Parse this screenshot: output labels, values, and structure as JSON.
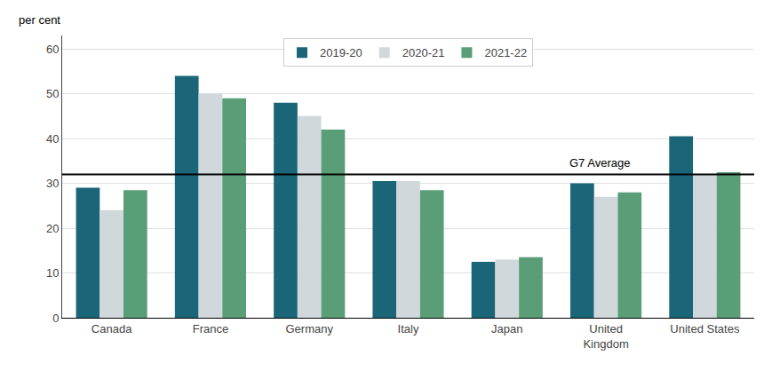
{
  "chart_data": {
    "type": "bar",
    "categories": [
      "Canada",
      "France",
      "Germany",
      "Italy",
      "Japan",
      "United\nKingdom",
      "United States"
    ],
    "series": [
      {
        "name": "2019-20",
        "color": "#1b6578",
        "values": [
          29.0,
          54.0,
          48.0,
          30.5,
          12.5,
          30.0,
          40.5
        ]
      },
      {
        "name": "2020-21",
        "color": "#d0d8dc",
        "values": [
          24.0,
          50.0,
          45.0,
          30.5,
          13.0,
          27.0,
          32.0
        ]
      },
      {
        "name": "2021-22",
        "color": "#5a9e78",
        "values": [
          28.5,
          49.0,
          42.0,
          28.5,
          13.5,
          28.0,
          32.5
        ]
      }
    ],
    "ylabel": "per cent",
    "reference_line": {
      "value": 32.0,
      "label": "G7 Average"
    },
    "ylim": [
      0,
      63
    ],
    "yticks": [
      0,
      10,
      20,
      30,
      40,
      50,
      60
    ],
    "grid": true,
    "legend": "upper center"
  }
}
